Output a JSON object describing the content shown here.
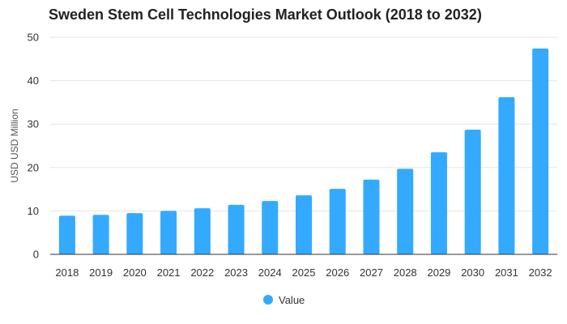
{
  "chart_data": {
    "type": "bar",
    "title": "Sweden Stem Cell Technologies Market Outlook (2018 to 2032)",
    "xlabel": "",
    "ylabel": "USD USD Million",
    "ylim": [
      0,
      50
    ],
    "yticks": [
      0,
      10,
      20,
      30,
      40,
      50
    ],
    "grid": true,
    "legend_position": "bottom",
    "categories": [
      "2018",
      "2019",
      "2020",
      "2021",
      "2022",
      "2023",
      "2024",
      "2025",
      "2026",
      "2027",
      "2028",
      "2029",
      "2030",
      "2031",
      "2032"
    ],
    "series": [
      {
        "name": "Value",
        "color": "#33aaff",
        "values": [
          8.9,
          9.1,
          9.5,
          10.0,
          10.6,
          11.4,
          12.3,
          13.6,
          15.1,
          17.2,
          19.7,
          23.5,
          28.7,
          36.2,
          47.4
        ]
      }
    ]
  }
}
